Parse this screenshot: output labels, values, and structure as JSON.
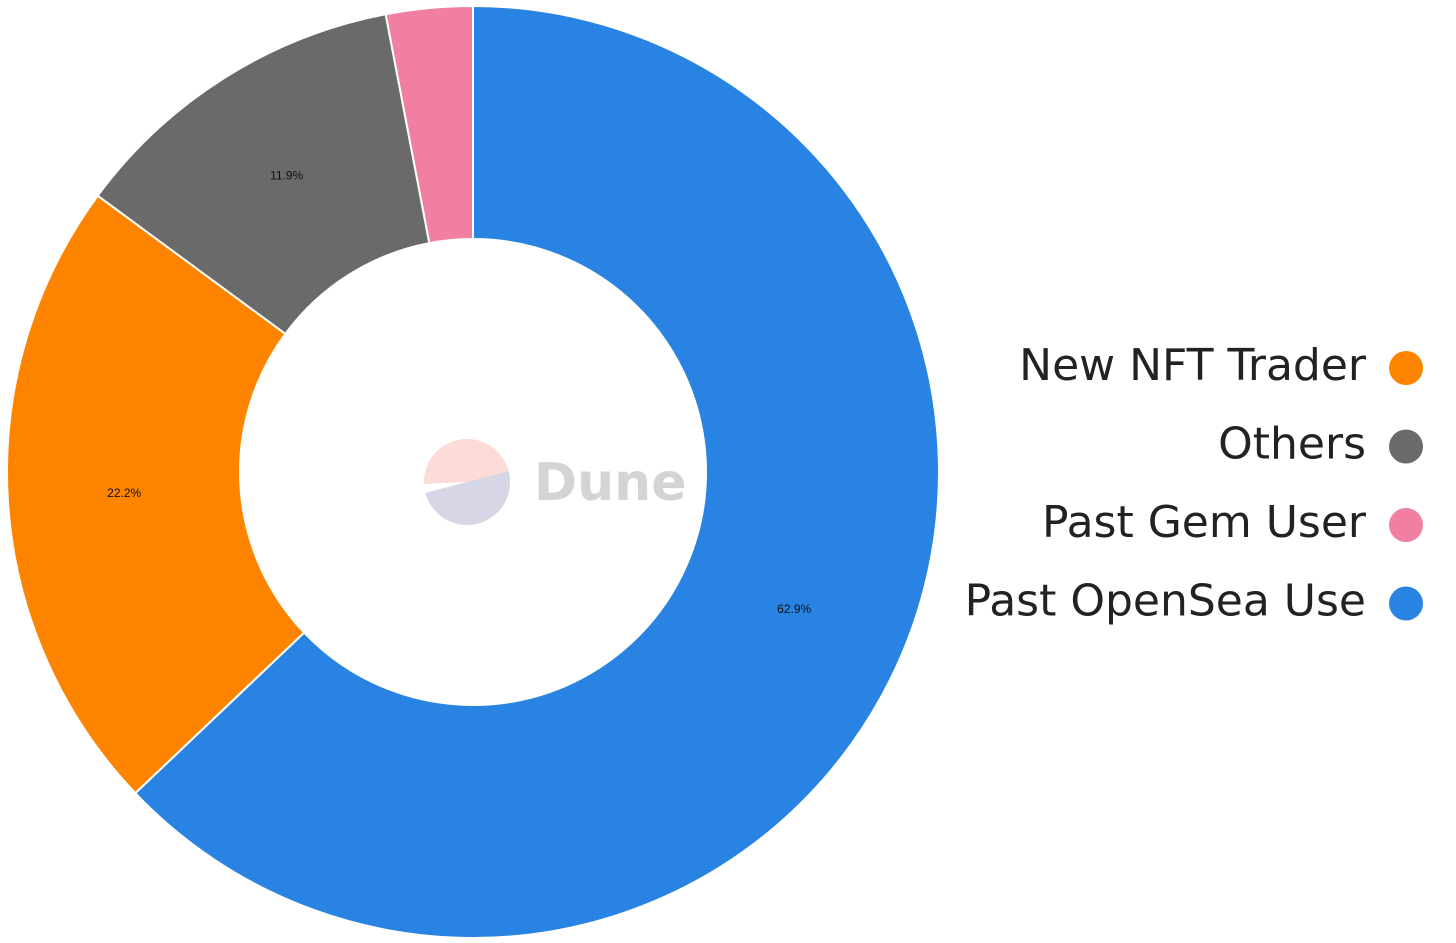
{
  "chart_data": {
    "type": "donut",
    "categories": [
      "New NFT Trader",
      "Others",
      "Past Gem User",
      "Past OpenSea Use"
    ],
    "values": [
      22.2,
      11.9,
      3.0,
      62.9
    ],
    "value_labels": [
      "22.2%",
      "11.9%",
      null,
      "62.9%"
    ],
    "colors": [
      "#fe8400",
      "#6b6a6a",
      "#f07fa2",
      "#2983e2"
    ],
    "watermark": "Dune"
  }
}
